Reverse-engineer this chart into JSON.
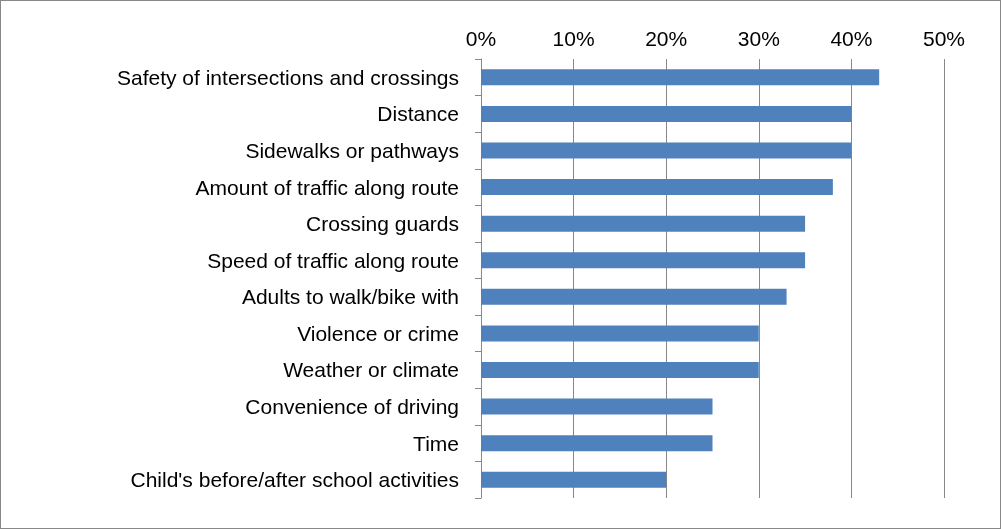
{
  "chart_data": {
    "type": "bar",
    "orientation": "horizontal",
    "categories": [
      "Safety of intersections and crossings",
      "Distance",
      "Sidewalks or pathways",
      "Amount of traffic along route",
      "Crossing guards",
      "Speed of traffic along route",
      "Adults to walk/bike with",
      "Violence or crime",
      "Weather or climate",
      "Convenience of driving",
      "Time",
      "Child's before/after school activities"
    ],
    "values": [
      43,
      40,
      40,
      38,
      35,
      35,
      33,
      30,
      30,
      25,
      25,
      20
    ],
    "color": "#4f81bd",
    "xlim": [
      0,
      50
    ],
    "xticks": [
      {
        "value": 0,
        "label": "0%"
      },
      {
        "value": 10,
        "label": "10%"
      },
      {
        "value": 20,
        "label": "20%"
      },
      {
        "value": 30,
        "label": "30%"
      },
      {
        "value": 40,
        "label": "40%"
      },
      {
        "value": 50,
        "label": "50%"
      }
    ],
    "grid": "x"
  }
}
